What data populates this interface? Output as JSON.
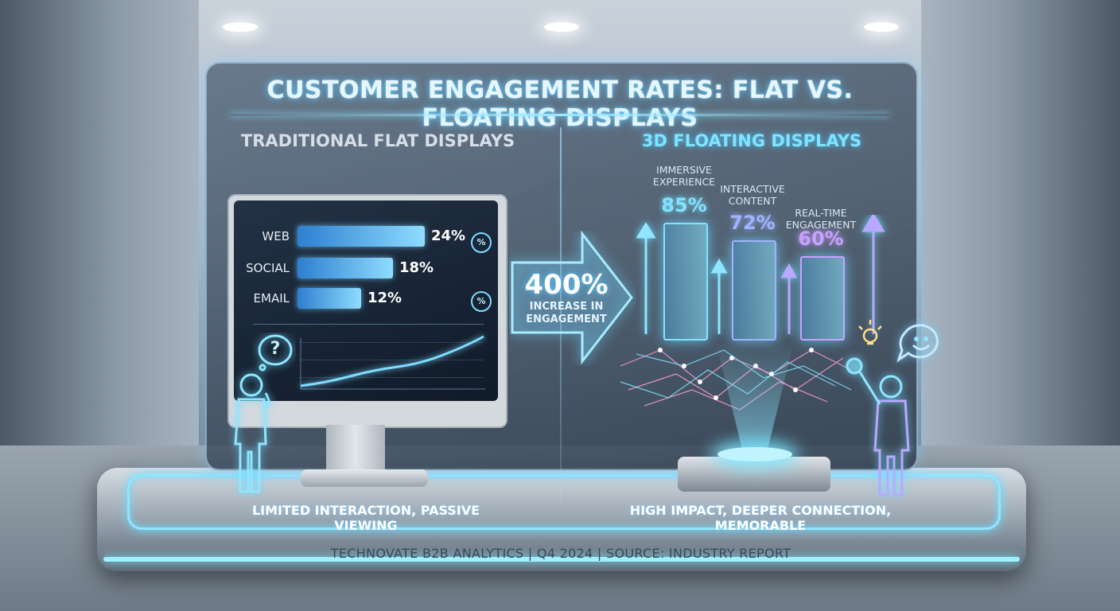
{
  "title": "CUSTOMER ENGAGEMENT RATES: FLAT VS. FLOATING DISPLAYS",
  "left_subtitle": "TRADITIONAL FLAT DISPLAYS",
  "right_subtitle": "3D FLOATING DISPLAYS",
  "arrow": {
    "value": "400%",
    "text_line1": "INCREASE IN",
    "text_line2": "ENGAGEMENT"
  },
  "left_caption": "LIMITED INTERACTION, PASSIVE VIEWING",
  "right_caption": "HIGH IMPACT, DEEPER CONNECTION, MEMORABLE",
  "footer": "TECHNOVATE B2B ANALYTICS | Q4 2024 | SOURCE: INDUSTRY REPORT",
  "badge_symbol": "%",
  "question_symbol": "?",
  "chart_data": [
    {
      "type": "bar",
      "orientation": "horizontal",
      "title": "",
      "categories": [
        "WEB",
        "SOCIAL",
        "EMAIL"
      ],
      "values": [
        24,
        18,
        12
      ],
      "value_labels": [
        "24%",
        "18%",
        "12%"
      ],
      "xlim": [
        0,
        30
      ],
      "color": "#6fd0ff"
    },
    {
      "type": "bar",
      "title": "",
      "categories": [
        [
          "IMMERSIVE",
          "EXPERIENCE"
        ],
        [
          "INTERACTIVE",
          "CONTENT"
        ],
        [
          "REAL-TIME",
          "ENGAGEMENT"
        ]
      ],
      "values": [
        85,
        72,
        60
      ],
      "value_labels": [
        "85%",
        "72%",
        "60%"
      ],
      "ylim": [
        0,
        100
      ],
      "colors": [
        "#7fe4ff",
        "#9fb4ff",
        "#c7a2ff"
      ]
    }
  ],
  "colors": {
    "accent": "#7fe4ff",
    "glow": "#5cc8ff"
  }
}
